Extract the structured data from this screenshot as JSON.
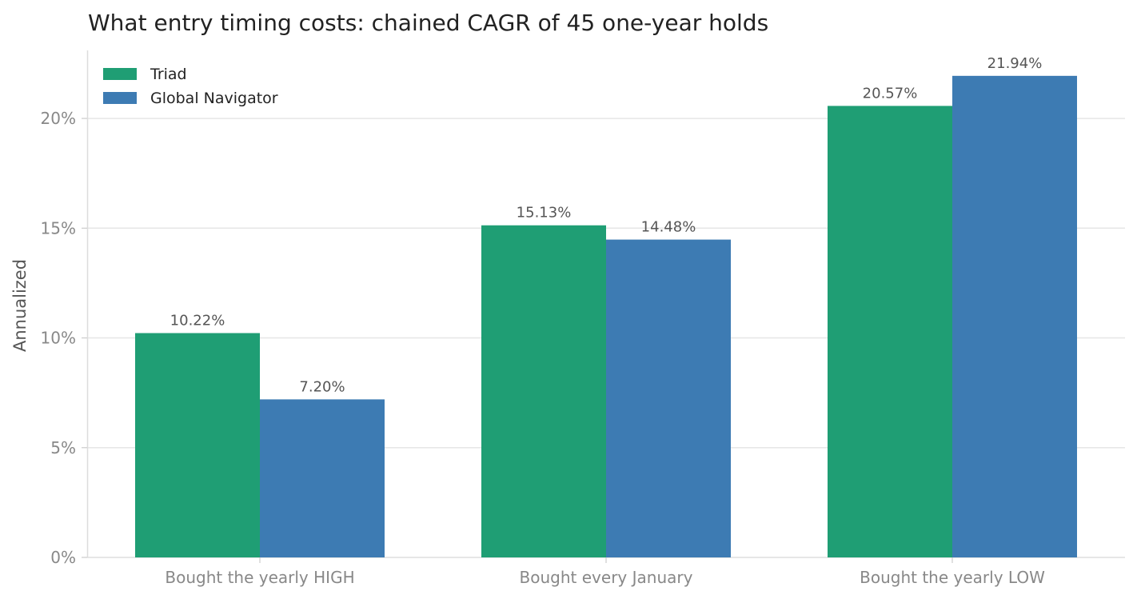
{
  "chart_data": {
    "type": "bar",
    "title": "What entry timing costs: chained CAGR of 45 one-year holds",
    "xlabel": "",
    "ylabel": "Annualized",
    "categories": [
      "Bought the yearly HIGH",
      "Bought every January",
      "Bought the yearly LOW"
    ],
    "series": [
      {
        "name": "Triad",
        "color": "#1f9e74",
        "values": [
          10.22,
          15.13,
          20.57
        ],
        "labels": [
          "10.22%",
          "15.13%",
          "20.57%"
        ]
      },
      {
        "name": "Global Navigator",
        "color": "#3d7bb3",
        "values": [
          7.2,
          14.48,
          21.94
        ],
        "labels": [
          "7.20%",
          "14.48%",
          "21.94%"
        ]
      }
    ],
    "ylim": [
      0,
      23.1
    ],
    "yticks": [
      0,
      5,
      10,
      15,
      20
    ],
    "ytick_labels": [
      "0%",
      "5%",
      "10%",
      "15%",
      "20%"
    ],
    "grid": "horizontal",
    "legend": "top-left"
  }
}
